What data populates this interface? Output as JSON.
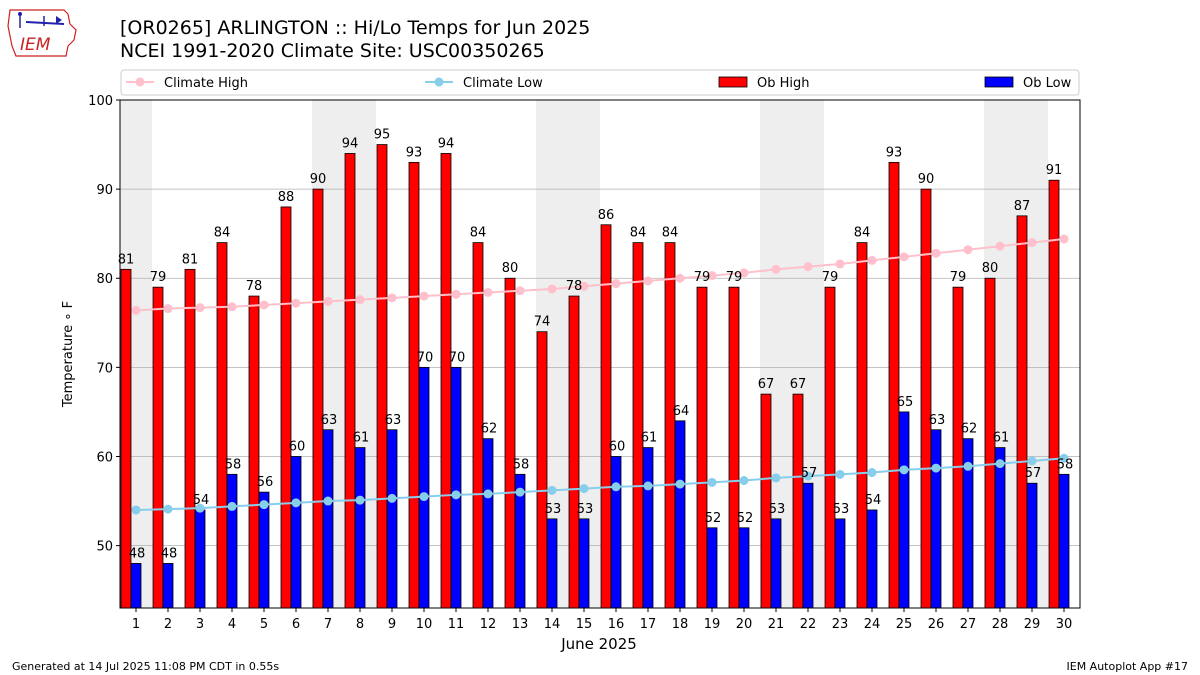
{
  "header": {
    "logo_text": "IEM",
    "title_line1": "[OR0265] ARLINGTON :: Hi/Lo Temps for Jun 2025",
    "title_line2": "NCEI 1991-2020 Climate Site: USC00350265"
  },
  "footer": {
    "left": "Generated at 14 Jul 2025 11:08 PM CDT in 0.55s",
    "right": "IEM Autoplot App #17"
  },
  "colors": {
    "ob_high": "#ff0000",
    "ob_low": "#0000ff",
    "climate_high": "#ffc0cb",
    "climate_low": "#87ceeb",
    "weekend_shade": "#eeeeee",
    "grid": "#b0b0b0"
  },
  "chart_data": {
    "type": "bar",
    "xlabel": "June 2025",
    "ylabel": "Temperature $^\\circ$F",
    "ylim": [
      43,
      100
    ],
    "yticks": [
      50,
      60,
      70,
      80,
      90,
      100
    ],
    "grid": "horizontal",
    "legend_placement": "top",
    "categories": [
      "1",
      "2",
      "3",
      "4",
      "5",
      "6",
      "7",
      "8",
      "9",
      "10",
      "11",
      "12",
      "13",
      "14",
      "15",
      "16",
      "17",
      "18",
      "19",
      "20",
      "21",
      "22",
      "23",
      "24",
      "25",
      "26",
      "27",
      "28",
      "29",
      "30"
    ],
    "shaded_days": [
      1,
      7,
      8,
      14,
      15,
      21,
      22,
      28,
      29
    ],
    "series": [
      {
        "name": "Climate High",
        "kind": "line",
        "values": [
          76.4,
          76.6,
          76.7,
          76.8,
          77.0,
          77.2,
          77.4,
          77.6,
          77.8,
          78.0,
          78.2,
          78.4,
          78.6,
          78.8,
          79.1,
          79.4,
          79.7,
          80.0,
          80.3,
          80.6,
          81.0,
          81.3,
          81.6,
          82.0,
          82.4,
          82.8,
          83.2,
          83.6,
          84.0,
          84.4
        ]
      },
      {
        "name": "Climate Low",
        "kind": "line",
        "values": [
          54.0,
          54.1,
          54.2,
          54.4,
          54.6,
          54.8,
          55.0,
          55.1,
          55.3,
          55.5,
          55.7,
          55.8,
          56.0,
          56.2,
          56.4,
          56.6,
          56.7,
          56.9,
          57.1,
          57.3,
          57.6,
          57.8,
          58.0,
          58.2,
          58.5,
          58.7,
          58.9,
          59.2,
          59.5,
          59.8
        ]
      },
      {
        "name": "Ob High",
        "kind": "bar",
        "values": [
          81,
          79,
          81,
          84,
          78,
          88,
          90,
          94,
          95,
          93,
          94,
          84,
          80,
          74,
          78,
          86,
          84,
          84,
          79,
          79,
          67,
          67,
          79,
          84,
          93,
          90,
          79,
          80,
          87,
          91
        ]
      },
      {
        "name": "Ob Low",
        "kind": "bar",
        "values": [
          48,
          48,
          54,
          58,
          56,
          60,
          63,
          61,
          63,
          70,
          70,
          62,
          58,
          53,
          53,
          60,
          61,
          64,
          52,
          52,
          53,
          57,
          53,
          54,
          65,
          63,
          62,
          61,
          57,
          58
        ]
      }
    ]
  }
}
